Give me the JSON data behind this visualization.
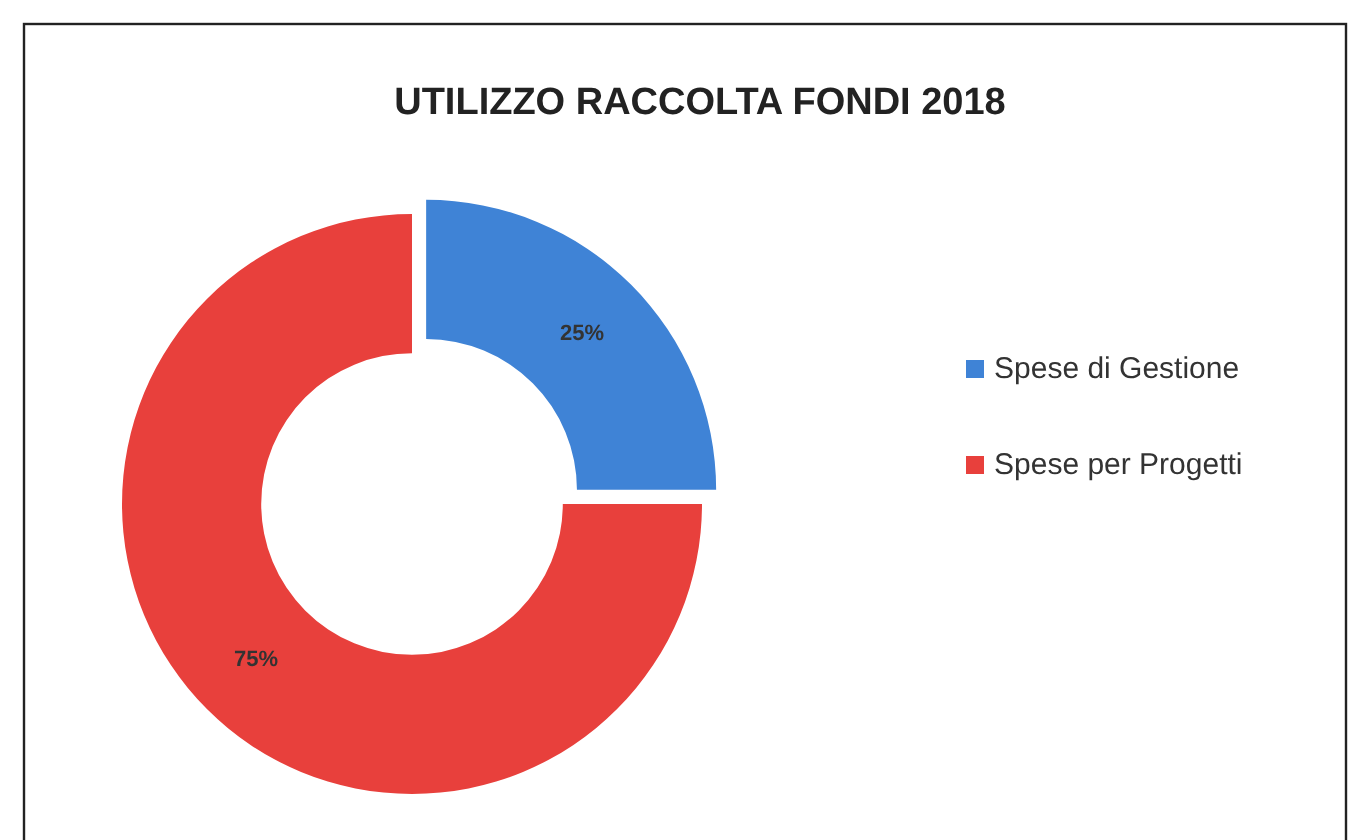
{
  "chart_data": {
    "type": "donut",
    "title": "UTILIZZO RACCOLTA FONDI 2018",
    "categories": [
      "Spese di Gestione",
      "Spese per Progetti"
    ],
    "values": [
      25,
      75
    ],
    "value_labels": [
      "25%",
      "75%"
    ],
    "colors": [
      "#3f83d6",
      "#e8403c"
    ],
    "legend": "right"
  }
}
